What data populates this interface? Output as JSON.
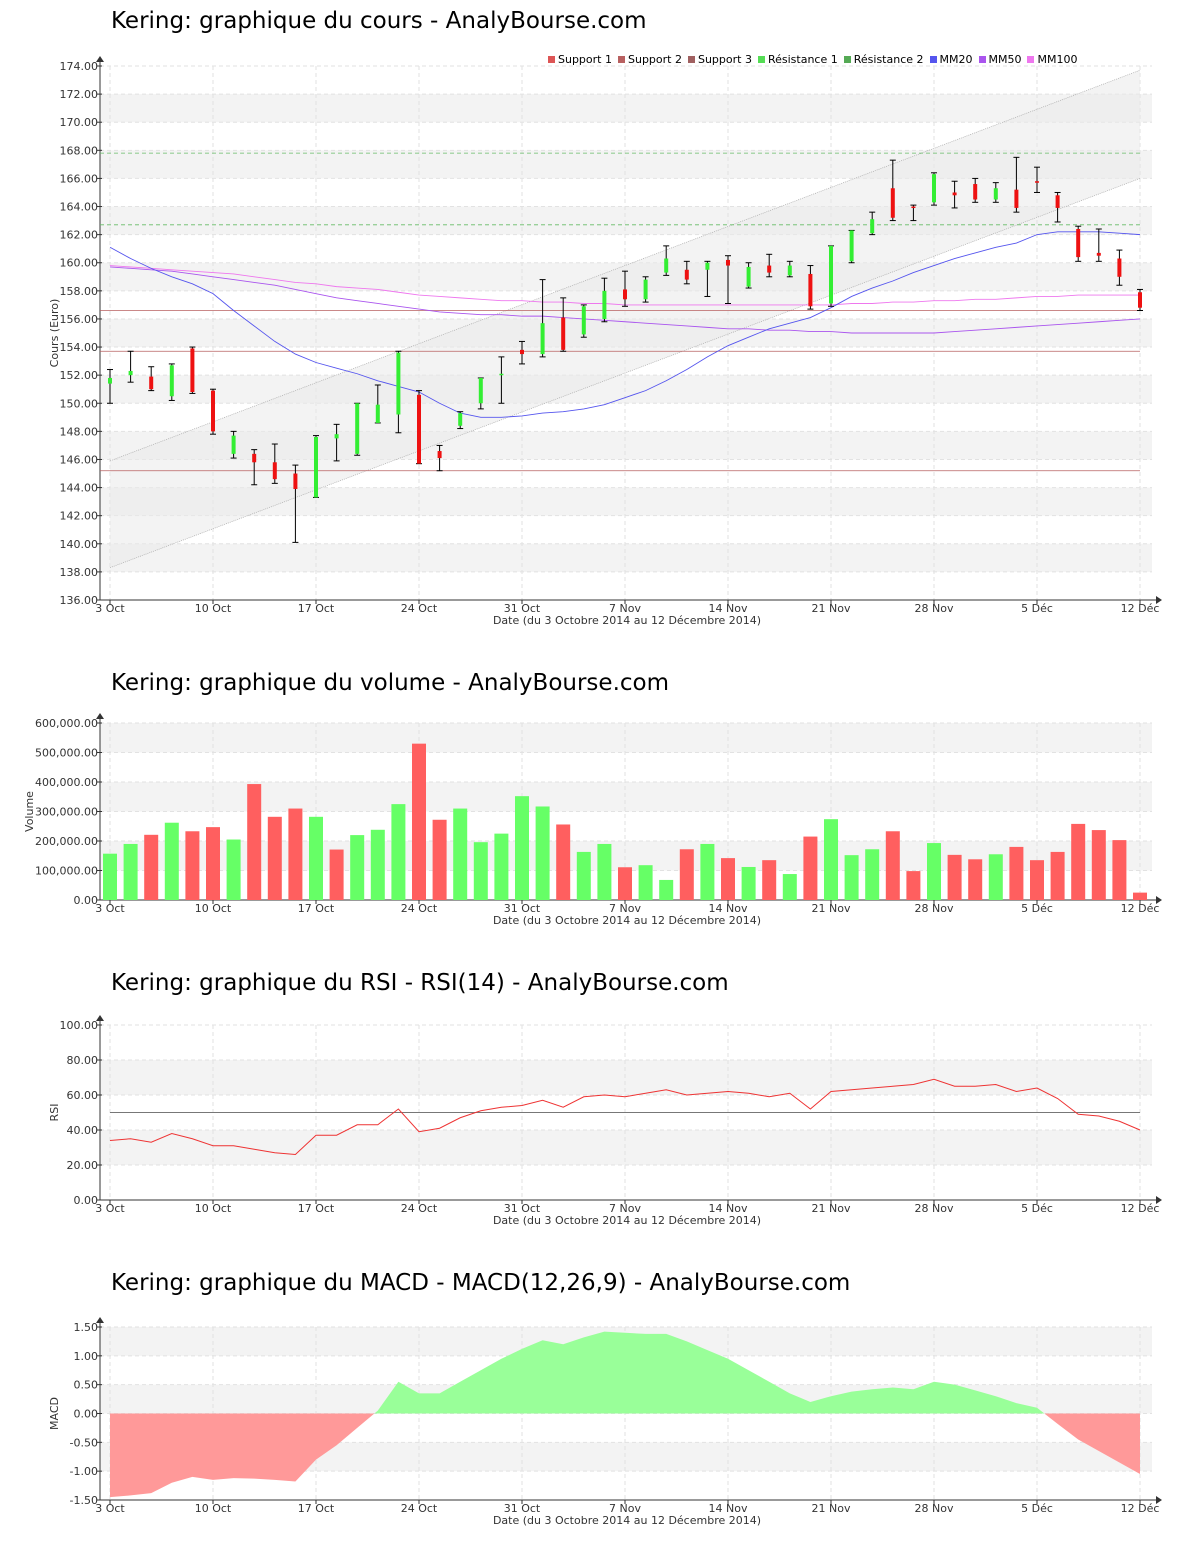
{
  "xlabel": "Date (du 3 Octobre 2014 au 12 Décembre 2014)",
  "x_ticks": [
    "3 Oct",
    "10 Oct",
    "17 Oct",
    "24 Oct",
    "31 Oct",
    "7 Nov",
    "14 Nov",
    "21 Nov",
    "28 Nov",
    "5 Déc",
    "12 Déc"
  ],
  "colors": {
    "up": "#33ee33",
    "down": "#ee1111",
    "vol_up": "#66ff66",
    "vol_down": "#ff5f5f",
    "support": "#b86060",
    "resistance": "#66bb66",
    "mm20": "#5555ee",
    "mm50": "#aa55ee",
    "mm100": "#ee77ee",
    "rsi": "#ee3333",
    "macd_pos": "#99ff99",
    "macd_neg": "#ff9999"
  },
  "legend": [
    {
      "label": "Support 1",
      "color": "#dd5555"
    },
    {
      "label": "Support 2",
      "color": "#b86060"
    },
    {
      "label": "Support 3",
      "color": "#a06060"
    },
    {
      "label": "Résistance 1",
      "color": "#55dd55"
    },
    {
      "label": "Résistance 2",
      "color": "#55aa55"
    },
    {
      "label": "MM20",
      "color": "#5555ee"
    },
    {
      "label": "MM50",
      "color": "#aa55ee"
    },
    {
      "label": "MM100",
      "color": "#ee77ee"
    }
  ],
  "chart_data": [
    {
      "type": "candlestick",
      "title": "Kering: graphique du cours - AnalyBourse.com",
      "ylabel": "Cours (Euro)",
      "ylim": [
        136,
        174
      ],
      "yticks": [
        "136.00",
        "138.00",
        "140.00",
        "142.00",
        "144.00",
        "146.00",
        "148.00",
        "150.00",
        "152.00",
        "154.00",
        "156.00",
        "158.00",
        "160.00",
        "162.00",
        "164.00",
        "166.00",
        "168.00",
        "170.00",
        "172.00",
        "174.00"
      ],
      "dates": [
        "3 Oct",
        "6 Oct",
        "7 Oct",
        "8 Oct",
        "9 Oct",
        "10 Oct",
        "13 Oct",
        "14 Oct",
        "15 Oct",
        "16 Oct",
        "17 Oct",
        "20 Oct",
        "21 Oct",
        "22 Oct",
        "23 Oct",
        "24 Oct",
        "27 Oct",
        "28 Oct",
        "29 Oct",
        "30 Oct",
        "31 Oct",
        "3 Nov",
        "4 Nov",
        "5 Nov",
        "6 Nov",
        "7 Nov",
        "10 Nov",
        "11 Nov",
        "12 Nov",
        "13 Nov",
        "14 Nov",
        "17 Nov",
        "18 Nov",
        "19 Nov",
        "20 Nov",
        "21 Nov",
        "24 Nov",
        "25 Nov",
        "26 Nov",
        "27 Nov",
        "28 Nov",
        "1 Déc",
        "2 Déc",
        "3 Déc",
        "4 Déc",
        "5 Déc",
        "8 Déc",
        "9 Déc",
        "10 Déc",
        "11 Déc",
        "12 Déc"
      ],
      "ohlc": [
        [
          151.4,
          152.4,
          150.0,
          151.8
        ],
        [
          152.0,
          153.7,
          151.5,
          152.3
        ],
        [
          151.9,
          152.6,
          150.9,
          151.0
        ],
        [
          150.5,
          152.8,
          150.2,
          152.7
        ],
        [
          153.9,
          154.0,
          150.7,
          150.8
        ],
        [
          150.9,
          151.0,
          147.8,
          148.0
        ],
        [
          146.4,
          148.0,
          146.1,
          147.7
        ],
        [
          146.4,
          146.7,
          144.2,
          145.8
        ],
        [
          145.8,
          147.1,
          144.3,
          144.6
        ],
        [
          145.0,
          145.6,
          140.1,
          143.9
        ],
        [
          143.3,
          147.7,
          143.3,
          147.6
        ],
        [
          147.5,
          148.5,
          145.9,
          147.8
        ],
        [
          146.4,
          150.0,
          146.3,
          150.0
        ],
        [
          148.6,
          151.3,
          148.6,
          149.9
        ],
        [
          149.2,
          153.7,
          147.9,
          153.6
        ],
        [
          150.6,
          150.9,
          145.7,
          145.7
        ],
        [
          146.6,
          147.0,
          145.2,
          146.1
        ],
        [
          148.4,
          149.4,
          148.2,
          149.3
        ],
        [
          150.0,
          151.8,
          149.6,
          151.8
        ],
        [
          152.0,
          153.3,
          150.0,
          152.1
        ],
        [
          153.8,
          154.4,
          152.8,
          153.5
        ],
        [
          153.5,
          158.8,
          153.3,
          155.7
        ],
        [
          156.1,
          157.5,
          153.7,
          153.8
        ],
        [
          154.9,
          157.0,
          154.7,
          156.9
        ],
        [
          156.0,
          158.9,
          155.8,
          158.0
        ],
        [
          158.1,
          159.4,
          156.9,
          157.4
        ],
        [
          157.4,
          159.0,
          157.2,
          158.8
        ],
        [
          159.3,
          161.2,
          159.1,
          160.3
        ],
        [
          159.5,
          160.1,
          158.5,
          158.8
        ],
        [
          159.5,
          160.1,
          157.6,
          160.0
        ],
        [
          160.2,
          160.5,
          157.1,
          159.8
        ],
        [
          158.3,
          160.0,
          158.2,
          159.7
        ],
        [
          159.8,
          160.6,
          159.0,
          159.3
        ],
        [
          159.1,
          160.1,
          159.0,
          159.8
        ],
        [
          159.2,
          159.8,
          156.7,
          156.9
        ],
        [
          157.1,
          161.2,
          156.9,
          161.2
        ],
        [
          160.1,
          162.3,
          160.0,
          162.3
        ],
        [
          162.1,
          163.6,
          162.0,
          163.1
        ],
        [
          165.3,
          167.3,
          163.0,
          163.2
        ],
        [
          164.0,
          164.1,
          163.0,
          163.9
        ],
        [
          164.3,
          166.4,
          164.1,
          166.3
        ],
        [
          165.0,
          165.8,
          163.9,
          164.8
        ],
        [
          165.6,
          166.0,
          164.3,
          164.5
        ],
        [
          164.5,
          165.7,
          164.3,
          165.3
        ],
        [
          165.2,
          167.5,
          163.6,
          163.9
        ],
        [
          165.8,
          166.8,
          165.0,
          165.7
        ],
        [
          164.8,
          165.0,
          162.9,
          163.9
        ],
        [
          162.4,
          162.6,
          160.1,
          160.4
        ],
        [
          160.7,
          162.4,
          160.1,
          160.5
        ],
        [
          160.3,
          160.9,
          158.4,
          159.0
        ],
        [
          157.9,
          158.1,
          156.6,
          156.8
        ]
      ],
      "support_levels": [
        156.6,
        153.7,
        145.2
      ],
      "resistance_levels": [
        167.8,
        162.7
      ],
      "channel": {
        "upper": [
          145.9,
          173.7
        ],
        "lower": [
          138.3,
          166.0
        ]
      },
      "mm20": [
        161.1,
        160.3,
        159.6,
        159.0,
        158.5,
        157.8,
        156.6,
        155.5,
        154.4,
        153.5,
        152.9,
        152.5,
        152.1,
        151.6,
        151.2,
        150.8,
        150.0,
        149.3,
        149.0,
        149.0,
        149.1,
        149.3,
        149.4,
        149.6,
        149.9,
        150.4,
        150.9,
        151.6,
        152.4,
        153.3,
        154.1,
        154.7,
        155.3,
        155.7,
        156.1,
        156.8,
        157.6,
        158.2,
        158.7,
        159.3,
        159.8,
        160.3,
        160.7,
        161.1,
        161.4,
        162.0,
        162.2,
        162.2,
        162.2,
        162.1,
        162.0
      ],
      "mm50": [
        159.7,
        159.6,
        159.5,
        159.4,
        159.2,
        159.0,
        158.8,
        158.6,
        158.4,
        158.1,
        157.8,
        157.5,
        157.3,
        157.1,
        156.9,
        156.7,
        156.5,
        156.4,
        156.3,
        156.3,
        156.2,
        156.2,
        156.1,
        156.0,
        155.9,
        155.8,
        155.7,
        155.6,
        155.5,
        155.4,
        155.3,
        155.3,
        155.2,
        155.2,
        155.1,
        155.1,
        155.0,
        155.0,
        155.0,
        155.0,
        155.0,
        155.1,
        155.2,
        155.3,
        155.4,
        155.5,
        155.6,
        155.7,
        155.8,
        155.9,
        156.0
      ],
      "mm100": [
        159.8,
        159.7,
        159.6,
        159.5,
        159.4,
        159.3,
        159.2,
        159.0,
        158.8,
        158.6,
        158.5,
        158.3,
        158.2,
        158.1,
        157.9,
        157.7,
        157.6,
        157.5,
        157.4,
        157.3,
        157.3,
        157.2,
        157.2,
        157.1,
        157.1,
        157.0,
        157.0,
        157.0,
        157.0,
        157.0,
        157.0,
        157.0,
        157.0,
        157.0,
        157.0,
        157.0,
        157.1,
        157.1,
        157.2,
        157.2,
        157.3,
        157.3,
        157.4,
        157.4,
        157.5,
        157.6,
        157.6,
        157.7,
        157.7,
        157.7,
        157.7
      ]
    },
    {
      "type": "bar",
      "title": "Kering: graphique du volume - AnalyBourse.com",
      "ylabel": "Volume",
      "ylim": [
        0,
        600000
      ],
      "yticks": [
        "0.00",
        "100,000.00",
        "200,000.00",
        "300,000.00",
        "400,000.00",
        "500,000.00",
        "600,000.00"
      ],
      "values": [
        157000,
        190000,
        221000,
        262000,
        233000,
        247000,
        205000,
        393000,
        282000,
        310000,
        282000,
        171000,
        220000,
        238000,
        325000,
        530000,
        272000,
        310000,
        196000,
        225000,
        352000,
        317000,
        256000,
        163000,
        190000,
        111000,
        118000,
        68000,
        172000,
        190000,
        142000,
        112000,
        135000,
        88000,
        215000,
        274000,
        152000,
        172000,
        233000,
        98000,
        193000,
        153000,
        138000,
        155000,
        180000,
        135000,
        163000,
        258000,
        237000,
        203000,
        25000
      ],
      "up": [
        1,
        1,
        0,
        1,
        0,
        0,
        1,
        0,
        0,
        0,
        1,
        0,
        1,
        1,
        1,
        0,
        0,
        1,
        1,
        1,
        1,
        1,
        0,
        1,
        1,
        0,
        1,
        1,
        0,
        1,
        0,
        1,
        0,
        1,
        0,
        1,
        1,
        1,
        0,
        0,
        1,
        0,
        0,
        1,
        0,
        0,
        0,
        0,
        0,
        0,
        0
      ]
    },
    {
      "type": "line",
      "title": "Kering: graphique du RSI - RSI(14) - AnalyBourse.com",
      "ylabel": "RSI",
      "ylim": [
        0,
        100
      ],
      "yticks": [
        "0.00",
        "20.00",
        "40.00",
        "60.00",
        "80.00",
        "100.00"
      ],
      "reference": 50,
      "values": [
        34,
        35,
        33,
        38,
        35,
        31,
        31,
        29,
        27,
        26,
        37,
        37,
        43,
        43,
        52,
        39,
        41,
        47,
        51,
        53,
        54,
        57,
        53,
        59,
        60,
        59,
        61,
        63,
        60,
        61,
        62,
        61,
        59,
        61,
        52,
        62,
        63,
        64,
        65,
        66,
        69,
        65,
        65,
        66,
        62,
        64,
        58,
        49,
        48,
        45,
        40
      ]
    },
    {
      "type": "area",
      "title": "Kering: graphique du MACD - MACD(12,26,9) - AnalyBourse.com",
      "ylabel": "MACD",
      "ylim": [
        -1.5,
        1.5
      ],
      "yticks": [
        "-1.50",
        "-1.00",
        "-0.50",
        "0.00",
        "0.50",
        "1.00",
        "1.50"
      ],
      "values": [
        -1.45,
        -1.42,
        -1.38,
        -1.2,
        -1.1,
        -1.15,
        -1.12,
        -1.13,
        -1.15,
        -1.18,
        -0.8,
        -0.55,
        -0.25,
        0.05,
        0.55,
        0.35,
        0.35,
        0.55,
        0.75,
        0.95,
        1.12,
        1.27,
        1.2,
        1.32,
        1.42,
        1.4,
        1.38,
        1.38,
        1.25,
        1.1,
        0.95,
        0.75,
        0.55,
        0.35,
        0.2,
        0.3,
        0.38,
        0.42,
        0.45,
        0.42,
        0.55,
        0.5,
        0.4,
        0.3,
        0.18,
        0.1,
        -0.18,
        -0.45,
        -0.65,
        -0.85,
        -1.05
      ]
    }
  ]
}
